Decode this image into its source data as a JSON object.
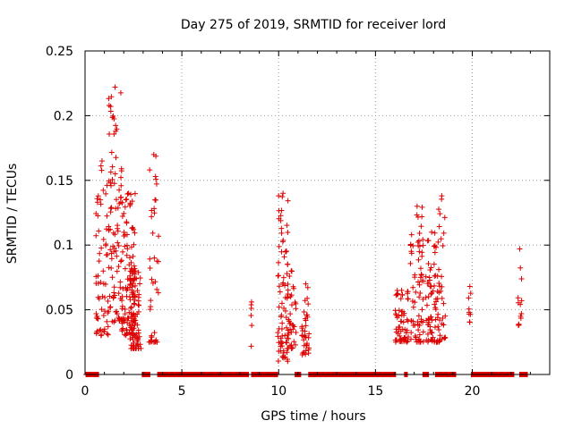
{
  "chart_data": {
    "type": "scatter",
    "title": "Day 275 of 2019, SRMTID for receiver lord",
    "xlabel": "GPS time / hours",
    "ylabel": "SRMTID / TECUs",
    "xlim": [
      0,
      24
    ],
    "ylim": [
      0,
      0.25
    ],
    "x_ticks": [
      0,
      5,
      10,
      15,
      20
    ],
    "x_tick_labels": [
      "0",
      "5",
      "10",
      "15",
      "20"
    ],
    "y_ticks": [
      0,
      0.05,
      0.1,
      0.15,
      0.2,
      0.25
    ],
    "y_tick_labels": [
      "0",
      "0.05",
      "0.1",
      "0.15",
      "0.2",
      "0.25"
    ],
    "grid": true,
    "legend": "none",
    "marker": "+",
    "series_color": "#dd0000",
    "clusters": [
      {
        "x_start": 0.55,
        "x_end": 1.2,
        "y_min": 0.03,
        "y_max": 0.165,
        "n": 60
      },
      {
        "x_start": 1.2,
        "x_end": 1.9,
        "y_min": 0.04,
        "y_max": 0.222,
        "n": 90
      },
      {
        "x_start": 1.9,
        "x_end": 2.6,
        "y_min": 0.03,
        "y_max": 0.14,
        "n": 90
      },
      {
        "x_start": 2.3,
        "x_end": 2.9,
        "y_min": 0.02,
        "y_max": 0.08,
        "n": 90
      },
      {
        "x_start": 3.3,
        "x_end": 3.8,
        "y_min": 0.025,
        "y_max": 0.17,
        "n": 40
      },
      {
        "x_start": 8.55,
        "x_end": 8.65,
        "y_min": 0.02,
        "y_max": 0.056,
        "n": 5
      },
      {
        "x_start": 9.95,
        "x_end": 10.5,
        "y_min": 0.01,
        "y_max": 0.14,
        "n": 70
      },
      {
        "x_start": 10.4,
        "x_end": 10.9,
        "y_min": 0.02,
        "y_max": 0.08,
        "n": 40
      },
      {
        "x_start": 11.2,
        "x_end": 11.6,
        "y_min": 0.015,
        "y_max": 0.07,
        "n": 35
      },
      {
        "x_start": 16.0,
        "x_end": 16.7,
        "y_min": 0.025,
        "y_max": 0.065,
        "n": 60
      },
      {
        "x_start": 16.8,
        "x_end": 17.5,
        "y_min": 0.025,
        "y_max": 0.13,
        "n": 70
      },
      {
        "x_start": 17.6,
        "x_end": 18.2,
        "y_min": 0.025,
        "y_max": 0.11,
        "n": 60
      },
      {
        "x_start": 18.2,
        "x_end": 18.65,
        "y_min": 0.025,
        "y_max": 0.138,
        "n": 40
      },
      {
        "x_start": 19.8,
        "x_end": 19.95,
        "y_min": 0.04,
        "y_max": 0.068,
        "n": 8
      },
      {
        "x_start": 22.35,
        "x_end": 22.55,
        "y_min": 0.038,
        "y_max": 0.097,
        "n": 12
      }
    ],
    "zero_segments": [
      [
        0.05,
        0.7
      ],
      [
        2.95,
        3.35
      ],
      [
        3.75,
        8.45
      ],
      [
        8.6,
        9.95
      ],
      [
        10.85,
        11.15
      ],
      [
        11.55,
        16.05
      ],
      [
        16.5,
        16.65
      ],
      [
        17.45,
        17.75
      ],
      [
        18.1,
        19.15
      ],
      [
        19.95,
        22.15
      ],
      [
        22.45,
        22.85
      ]
    ]
  }
}
